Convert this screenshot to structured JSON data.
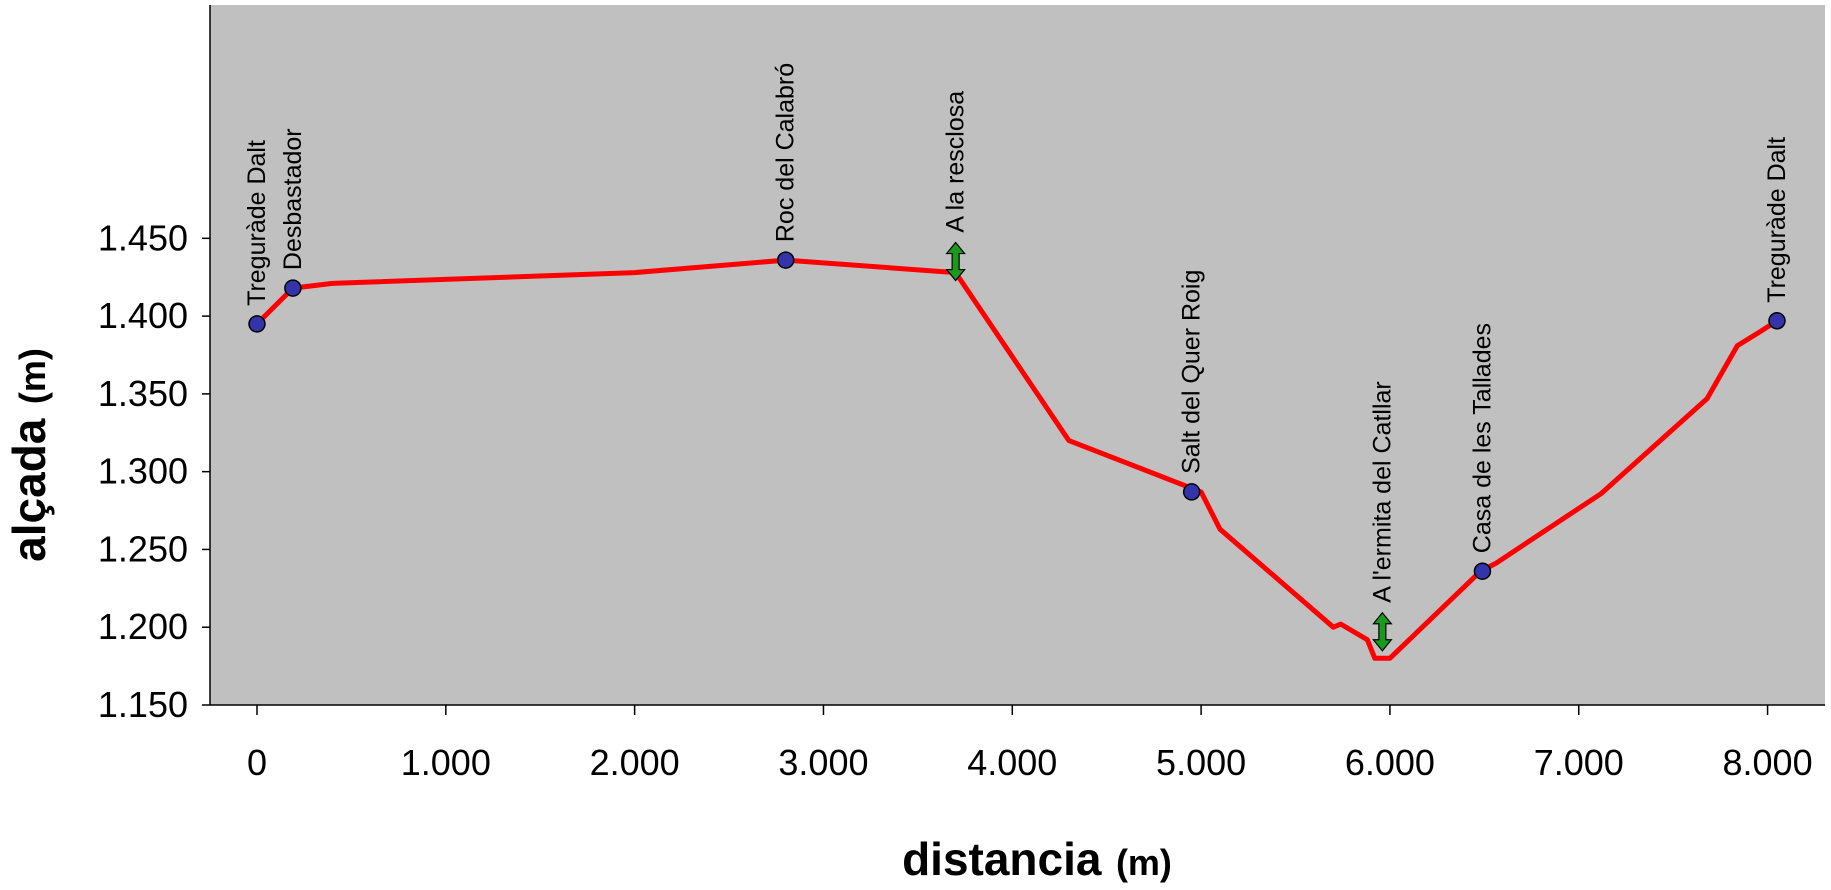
{
  "chart_data": {
    "type": "line",
    "xlabel": "distancia",
    "xlabel_unit": "(m)",
    "ylabel": "alçada",
    "ylabel_unit": "(m)",
    "xlim": [
      -250,
      8550
    ],
    "ylim": [
      1150,
      1600
    ],
    "x_ticks": [
      0,
      1000,
      2000,
      3000,
      4000,
      5000,
      6000,
      7000,
      8000
    ],
    "x_tick_labels": [
      "0",
      "1.000",
      "2.000",
      "3.000",
      "4.000",
      "5.000",
      "6.000",
      "7.000",
      "8.000"
    ],
    "y_ticks": [
      1150,
      1200,
      1250,
      1300,
      1350,
      1400,
      1450
    ],
    "y_tick_labels": [
      "1.150",
      "1.200",
      "1.250",
      "1.300",
      "1.350",
      "1.400",
      "1.450"
    ],
    "grid": false,
    "plot_background": "#c0c0c0",
    "line_color": "#ff0000",
    "marker_color": "#3333aa",
    "arrow_color": "#1a9a1a",
    "series": [
      {
        "x": [
          0,
          190,
          400,
          2000,
          2800,
          3700,
          4300,
          5000,
          5100,
          5700,
          5740,
          5880,
          5920,
          6000,
          6480,
          6560,
          7120,
          7680,
          7840,
          7960,
          8050
        ],
        "y": [
          1395,
          1418,
          1421,
          1428,
          1436,
          1428,
          1320,
          1287,
          1263,
          1200,
          1202,
          1192,
          1180,
          1180,
          1236,
          1241,
          1286,
          1347,
          1381,
          1390,
          1397
        ]
      }
    ],
    "waypoints": [
      {
        "label": "Treguràde Dalt",
        "x": 0,
        "y": 1395,
        "marker": "circle"
      },
      {
        "label": "Desbastador",
        "x": 190,
        "y": 1418,
        "marker": "circle"
      },
      {
        "label": "Roc del Calabró",
        "x": 2800,
        "y": 1436,
        "marker": "circle"
      },
      {
        "label": "A la resclosa",
        "x": 3700,
        "y": 1428,
        "marker": "arrow"
      },
      {
        "label": "Salt del Quer Roig",
        "x": 4950,
        "y": 1287,
        "marker": "circle"
      },
      {
        "label": "A l'ermita del Catllar",
        "x": 5960,
        "y": 1190,
        "marker": "arrow"
      },
      {
        "label": "Casa de les Tallades",
        "x": 6490,
        "y": 1236,
        "marker": "circle"
      },
      {
        "label": "Treguràde Dalt",
        "x": 8050,
        "y": 1397,
        "marker": "circle"
      }
    ]
  }
}
